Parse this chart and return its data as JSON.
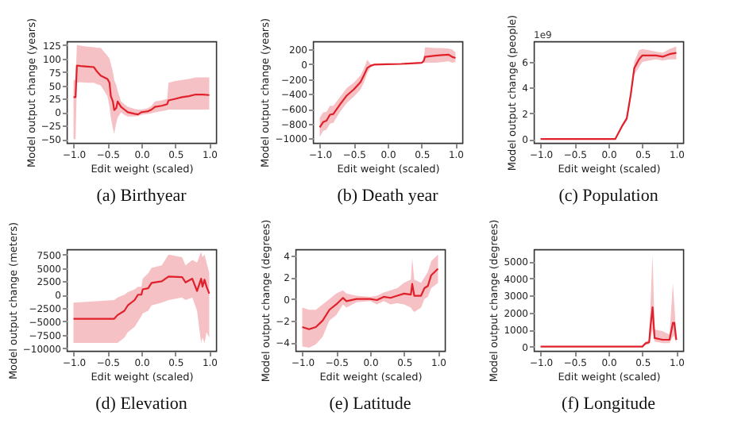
{
  "chart_data": [
    {
      "type": "line",
      "title": "(a) Birthyear",
      "xlabel": "Edit weight (scaled)",
      "ylabel": "Model output change (years)",
      "grid": false,
      "xlim": [
        -1.1,
        1.1
      ],
      "xticks": [
        {
          "value": -1,
          "label": "−1.0"
        },
        {
          "value": -0.5,
          "label": "−0.5"
        },
        {
          "value": 0,
          "label": "0.0"
        },
        {
          "value": 0.5,
          "label": "0.5"
        },
        {
          "value": 1,
          "label": "1.0"
        }
      ],
      "ylim": [
        -57,
        132
      ],
      "yticks": [
        {
          "value": -50,
          "label": "−50"
        },
        {
          "value": -25,
          "label": "−25"
        },
        0,
        25,
        50,
        75,
        100,
        125
      ],
      "series": [
        {
          "color": "#e0202a",
          "x": [
            -1,
            -0.97,
            -0.95,
            -0.9,
            -0.8,
            -0.7,
            -0.65,
            -0.6,
            -0.5,
            -0.47,
            -0.45,
            -0.42,
            -0.4,
            -0.37,
            -0.35,
            -0.3,
            -0.25,
            -0.2,
            -0.1,
            -0.05,
            0,
            0.05,
            0.1,
            0.15,
            0.2,
            0.3,
            0.38,
            0.4,
            0.5,
            0.6,
            0.7,
            0.8,
            0.9,
            1
          ],
          "values": [
            28,
            28,
            87,
            86,
            85,
            84,
            75,
            68,
            62,
            55,
            30,
            20,
            4,
            8,
            20,
            10,
            5,
            0,
            -3,
            -4,
            0,
            1,
            2,
            5,
            10,
            12,
            15,
            22,
            25,
            28,
            30,
            33,
            33,
            32
          ],
          "upper": [
            60,
            60,
            125,
            124,
            122,
            121,
            120,
            120,
            105,
            100,
            90,
            75,
            60,
            50,
            40,
            20,
            15,
            10,
            6,
            5,
            5,
            6,
            8,
            12,
            20,
            22,
            25,
            55,
            58,
            60,
            62,
            65,
            65,
            65
          ],
          "lower": [
            -50,
            -50,
            55,
            56,
            55,
            55,
            52,
            50,
            30,
            10,
            -10,
            -30,
            -40,
            -20,
            -10,
            0,
            -5,
            -8,
            -8,
            -7,
            -5,
            -4,
            -3,
            -2,
            0,
            2,
            4,
            5,
            5,
            5,
            5,
            5,
            5,
            5
          ]
        }
      ]
    },
    {
      "type": "line",
      "title": "(b) Death year",
      "xlabel": "Edit weight (scaled)",
      "ylabel": "Model output change (years)",
      "grid": false,
      "xlim": [
        -1.1,
        1.1
      ],
      "xticks": [
        {
          "value": -1,
          "label": "−1.0"
        },
        {
          "value": -0.5,
          "label": "−0.5"
        },
        {
          "value": 0,
          "label": "0.0"
        },
        {
          "value": 0.5,
          "label": "0.5"
        },
        {
          "value": 1,
          "label": "1.0"
        }
      ],
      "ylim": [
        -1060,
        310
      ],
      "yticks": [
        {
          "value": -1000,
          "label": "−1000"
        },
        {
          "value": -800,
          "label": "−800"
        },
        {
          "value": -600,
          "label": "−600"
        },
        {
          "value": -400,
          "label": "−400"
        },
        {
          "value": -200,
          "label": "−200"
        },
        0,
        200
      ],
      "series": [
        {
          "color": "#e0202a",
          "x": [
            -1,
            -0.95,
            -0.9,
            -0.85,
            -0.8,
            -0.7,
            -0.6,
            -0.5,
            -0.4,
            -0.35,
            -0.3,
            -0.25,
            -0.2,
            0,
            0.2,
            0.5,
            0.53,
            0.55,
            0.7,
            0.8,
            0.9,
            0.95,
            1
          ],
          "values": [
            -850,
            -780,
            -760,
            -680,
            -670,
            -540,
            -420,
            -340,
            -240,
            -150,
            -50,
            -20,
            -5,
            0,
            5,
            20,
            40,
            100,
            115,
            125,
            130,
            100,
            85
          ],
          "upper": [
            -720,
            -650,
            -640,
            -560,
            -560,
            -440,
            -320,
            -250,
            -150,
            -60,
            60,
            0,
            5,
            5,
            10,
            30,
            60,
            230,
            220,
            220,
            210,
            200,
            160
          ],
          "lower": [
            -980,
            -900,
            -880,
            -800,
            -790,
            -640,
            -520,
            -440,
            -340,
            -250,
            -120,
            -40,
            -15,
            -5,
            0,
            10,
            20,
            20,
            20,
            30,
            40,
            20,
            30
          ]
        }
      ]
    },
    {
      "type": "line",
      "title": "(c) Population",
      "xlabel": "Edit weight (scaled)",
      "ylabel": "Model output change (people)",
      "annotations": [
        "1e9"
      ],
      "grid": false,
      "xlim": [
        -1.1,
        1.1
      ],
      "xticks": [
        {
          "value": -1,
          "label": "−1.0"
        },
        {
          "value": -0.5,
          "label": "−0.5"
        },
        {
          "value": 0,
          "label": "0.0"
        },
        {
          "value": 0.5,
          "label": "0.5"
        },
        {
          "value": 1,
          "label": "1.0"
        }
      ],
      "ylim": [
        -0.3,
        7.6
      ],
      "yticks": [
        0,
        2,
        4,
        6
      ],
      "series": [
        {
          "color": "#e0202a",
          "x": [
            -1,
            0.1,
            0.2,
            0.27,
            0.33,
            0.38,
            0.45,
            0.5,
            0.6,
            0.7,
            0.8,
            0.9,
            1
          ],
          "values": [
            0,
            0,
            1,
            1.6,
            3.5,
            5.5,
            6.2,
            6.5,
            6.5,
            6.5,
            6.4,
            6.6,
            6.7
          ],
          "upper": [
            0,
            0,
            1.1,
            1.8,
            3.8,
            6,
            6.9,
            7,
            6.9,
            6.8,
            6.7,
            7,
            7.2
          ],
          "lower": [
            0,
            0,
            0.9,
            1.4,
            3.2,
            5,
            5.6,
            6,
            6.1,
            6.2,
            6.1,
            6.2,
            6.2
          ]
        }
      ]
    },
    {
      "type": "line",
      "title": "(d) Elevation",
      "xlabel": "Edit weight (scaled)",
      "ylabel": "Model output change (meters)",
      "grid": false,
      "xlim": [
        -1.1,
        1.1
      ],
      "xticks": [
        {
          "value": -1,
          "label": "−1.0"
        },
        {
          "value": -0.5,
          "label": "−0.5"
        },
        {
          "value": 0,
          "label": "0.0"
        },
        {
          "value": 0.5,
          "label": "0.5"
        },
        {
          "value": 1,
          "label": "1.0"
        }
      ],
      "ylim": [
        -10500,
        8500
      ],
      "yticks": [
        {
          "value": -10000,
          "label": "−10000"
        },
        {
          "value": -7500,
          "label": "−7500"
        },
        {
          "value": -5000,
          "label": "−5000"
        },
        {
          "value": -2500,
          "label": "−2500"
        },
        0,
        2500,
        5000,
        {
          "value": 7500,
          "label": "7500"
        }
      ],
      "series": [
        {
          "color": "#e0202a",
          "x": [
            -1,
            -0.4,
            -0.35,
            -0.25,
            -0.2,
            -0.1,
            -0.05,
            0,
            0.02,
            0.1,
            0.15,
            0.3,
            0.4,
            0.6,
            0.65,
            0.75,
            0.82,
            0.88,
            0.9,
            0.93,
            0.96,
            1
          ],
          "values": [
            -4500,
            -4500,
            -3800,
            -3000,
            -2000,
            -1000,
            0,
            0,
            1000,
            1200,
            2200,
            2500,
            3400,
            3300,
            2300,
            3000,
            700,
            3000,
            1500,
            2800,
            1500,
            200
          ],
          "upper": [
            -1500,
            -1000,
            -500,
            0,
            500,
            1000,
            1500,
            1500,
            3000,
            4000,
            5000,
            5500,
            7500,
            7000,
            5500,
            6500,
            6000,
            8000,
            7000,
            7500,
            6000,
            4000
          ],
          "lower": [
            -9000,
            -9000,
            -9000,
            -8000,
            -7000,
            -6000,
            -5000,
            -4000,
            -3500,
            -3000,
            -2000,
            -1500,
            -1000,
            -500,
            -1000,
            -500,
            -3000,
            -9000,
            -8000,
            -9000,
            -7000,
            -8000
          ]
        }
      ]
    },
    {
      "type": "line",
      "title": "(e) Latitude",
      "xlabel": "Edit weight (scaled)",
      "ylabel": "Model output change (degrees)",
      "grid": false,
      "xlim": [
        -1.1,
        1.1
      ],
      "xticks": [
        {
          "value": -1,
          "label": "−1.0"
        },
        {
          "value": -0.5,
          "label": "−0.5"
        },
        {
          "value": 0,
          "label": "0.0"
        },
        {
          "value": 0.5,
          "label": "0.5"
        },
        {
          "value": 1,
          "label": "1.0"
        }
      ],
      "ylim": [
        -4.8,
        4.6
      ],
      "yticks": [
        {
          "value": -4,
          "label": "−4"
        },
        {
          "value": -2,
          "label": "−2"
        },
        0,
        2,
        4
      ],
      "series": [
        {
          "color": "#e0202a",
          "x": [
            -1,
            -0.9,
            -0.8,
            -0.7,
            -0.6,
            -0.5,
            -0.4,
            -0.35,
            -0.2,
            0,
            0.1,
            0.2,
            0.3,
            0.4,
            0.5,
            0.6,
            0.62,
            0.65,
            0.75,
            0.8,
            0.85,
            0.9,
            1
          ],
          "values": [
            -2.6,
            -2.8,
            -2.6,
            -2,
            -1,
            -0.5,
            0.1,
            -0.2,
            0,
            0,
            -0.1,
            0.2,
            0.1,
            0.3,
            0.5,
            0.4,
            1.4,
            0.3,
            0.3,
            1,
            1.2,
            2.2,
            2.8
          ],
          "upper": [
            -0.8,
            -1,
            -1,
            -0.5,
            0,
            0.5,
            0.8,
            0.5,
            0.3,
            0.2,
            0.3,
            0.6,
            0.8,
            1,
            1.5,
            1.8,
            3.8,
            1.8,
            1.5,
            2,
            2.5,
            3.5,
            4.1
          ],
          "lower": [
            -4.4,
            -4.5,
            -4.2,
            -3.5,
            -2,
            -1.5,
            -0.5,
            -0.8,
            -0.3,
            -0.2,
            -0.5,
            -0.2,
            -0.5,
            -0.4,
            -0.5,
            -0.8,
            -1,
            -1.2,
            -0.8,
            0,
            0.2,
            1,
            1.5
          ]
        }
      ]
    },
    {
      "type": "line",
      "title": "(f) Longitude",
      "xlabel": "Edit weight (scaled)",
      "ylabel": "Model output change (degrees)",
      "grid": false,
      "xlim": [
        -1.1,
        1.1
      ],
      "xticks": [
        {
          "value": -1,
          "label": "−1.0"
        },
        {
          "value": -0.5,
          "label": "−0.5"
        },
        {
          "value": 0,
          "label": "0.0"
        },
        {
          "value": 0.5,
          "label": "0.5"
        },
        {
          "value": 1,
          "label": "1.0"
        }
      ],
      "ylim": [
        -250,
        5700
      ],
      "yticks": [
        0,
        1000,
        2000,
        3000,
        4000,
        {
          "value": 5000,
          "label": "5000"
        }
      ],
      "series": [
        {
          "color": "#e0202a",
          "x": [
            -1,
            0.5,
            0.55,
            0.6,
            0.62,
            0.65,
            0.68,
            0.8,
            0.9,
            0.95,
            0.97,
            1
          ],
          "values": [
            0,
            0,
            200,
            250,
            1200,
            2300,
            500,
            400,
            400,
            1400,
            1400,
            400
          ],
          "upper": [
            0,
            0,
            300,
            400,
            2500,
            5400,
            1000,
            900,
            700,
            3700,
            2500,
            600
          ],
          "lower": [
            0,
            0,
            100,
            150,
            500,
            1000,
            300,
            200,
            200,
            600,
            600,
            200
          ]
        }
      ]
    }
  ]
}
